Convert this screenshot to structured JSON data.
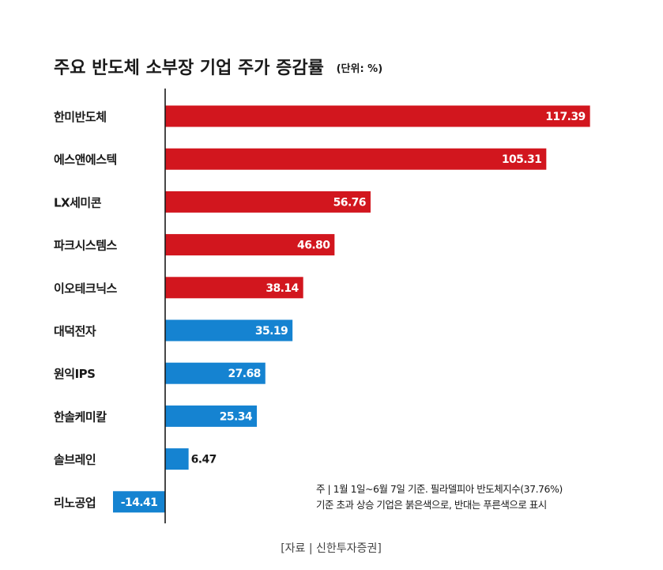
{
  "chart_data": {
    "type": "bar",
    "orientation": "horizontal",
    "title": "주요 반도체 소부장 기업 주가 증감률",
    "unit": "(단위: %)",
    "categories": [
      "한미반도체",
      "에스앤에스텍",
      "LX세미콘",
      "파크시스템스",
      "이오테크닉스",
      "대덕전자",
      "원익IPS",
      "한솔케미칼",
      "솔브레인",
      "리노공업"
    ],
    "values": [
      117.39,
      105.31,
      56.76,
      46.8,
      38.14,
      35.19,
      27.68,
      25.34,
      6.47,
      -14.41
    ],
    "value_labels": [
      "117.39",
      "105.31",
      "56.76",
      "46.80",
      "38.14",
      "35.19",
      "27.68",
      "25.34",
      "6.47",
      "-14.41"
    ],
    "benchmark": 37.76,
    "xlim": [
      -20,
      130
    ],
    "colors": {
      "above": "#d2161e",
      "below": "#1583d1"
    },
    "grid": false,
    "note_lines": [
      "주 | 1월 1일~6월 7일 기준. 필라델피아 반도체지수(37.76%)",
      "기준 초과 상승 기업은 붉은색으로, 반대는 푸른색으로 표시"
    ],
    "source": "[자료 | 신한투자증권]"
  }
}
